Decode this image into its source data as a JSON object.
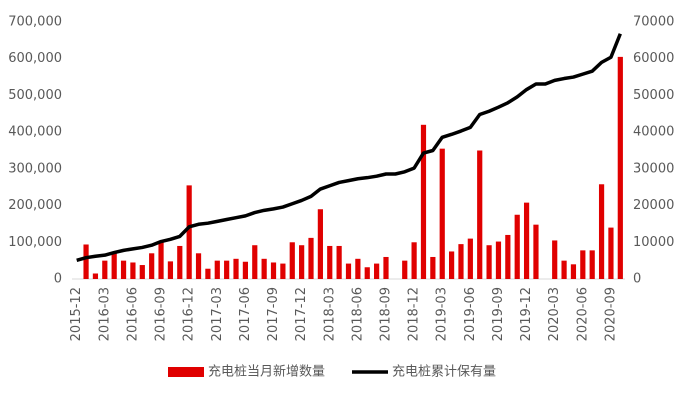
{
  "chart_data": {
    "type": "bar",
    "categories": [
      "2015-12",
      null,
      null,
      "2016-03",
      null,
      null,
      "2016-06",
      null,
      null,
      "2016-09",
      null,
      null,
      "2016-12",
      null,
      null,
      "2017-03",
      null,
      null,
      "2017-06",
      null,
      null,
      "2017-09",
      null,
      null,
      "2017-12",
      null,
      null,
      "2018-03",
      null,
      null,
      "2018-06",
      null,
      null,
      "2018-09",
      null,
      null,
      "2018-12",
      null,
      null,
      "2019-03",
      null,
      null,
      "2019-06",
      null,
      null,
      "2019-09",
      null,
      null,
      "2019-12",
      null,
      null,
      "2020-03",
      null,
      null,
      "2020-06",
      null,
      null,
      "2020-09",
      null
    ],
    "series": [
      {
        "name": "充电桩当月新增数量",
        "type": "bar",
        "axis": "y2",
        "color": "#e00000",
        "values": [
          null,
          9400,
          1500,
          5000,
          7000,
          5000,
          4500,
          3800,
          7000,
          10000,
          4800,
          9000,
          25500,
          7000,
          2800,
          5000,
          5000,
          5500,
          4700,
          9200,
          5500,
          4500,
          4200,
          10000,
          9200,
          11200,
          19000,
          9000,
          9000,
          4200,
          5500,
          3200,
          4200,
          6000,
          null,
          5000,
          10000,
          42000,
          6000,
          35500,
          7500,
          9500,
          11000,
          35000,
          9200,
          10200,
          12000,
          17500,
          20800,
          14800,
          null,
          10500,
          5000,
          4000,
          7800,
          7800,
          25800,
          14000,
          60500
        ]
      },
      {
        "name": "充电桩累计保有量",
        "type": "line",
        "color": "#000000",
        "values": [
          51000,
          58000,
          62000,
          65000,
          72000,
          78000,
          82000,
          86000,
          92000,
          102000,
          108000,
          116000,
          142000,
          149000,
          152000,
          157000,
          162000,
          167000,
          172000,
          181000,
          187000,
          191000,
          196000,
          205000,
          214000,
          225000,
          245000,
          254000,
          263000,
          268000,
          273000,
          276000,
          280000,
          286000,
          286000,
          292000,
          302000,
          343000,
          350000,
          386000,
          394000,
          403000,
          413000,
          448000,
          457000,
          468000,
          480000,
          496000,
          516000,
          531000,
          531000,
          541000,
          546000,
          550000,
          558000,
          566000,
          590000,
          604000,
          668000
        ]
      }
    ],
    "ylim": [
      0,
      700000
    ],
    "yticks": [
      0,
      {
        "value": 100000,
        "label": "100,000"
      },
      {
        "value": 200000,
        "label": "200,000"
      },
      {
        "value": 300000,
        "label": "300,000"
      },
      {
        "value": 400000,
        "label": "400,000"
      },
      {
        "value": 500000,
        "label": "500,000"
      },
      {
        "value": 600000,
        "label": "600,000"
      },
      {
        "value": 700000,
        "label": "700,000"
      }
    ],
    "y2lim": [
      0,
      70000
    ],
    "y2ticks": [
      0,
      10000,
      20000,
      30000,
      40000,
      50000,
      60000,
      70000
    ],
    "grid": false,
    "legend": "bottom"
  }
}
